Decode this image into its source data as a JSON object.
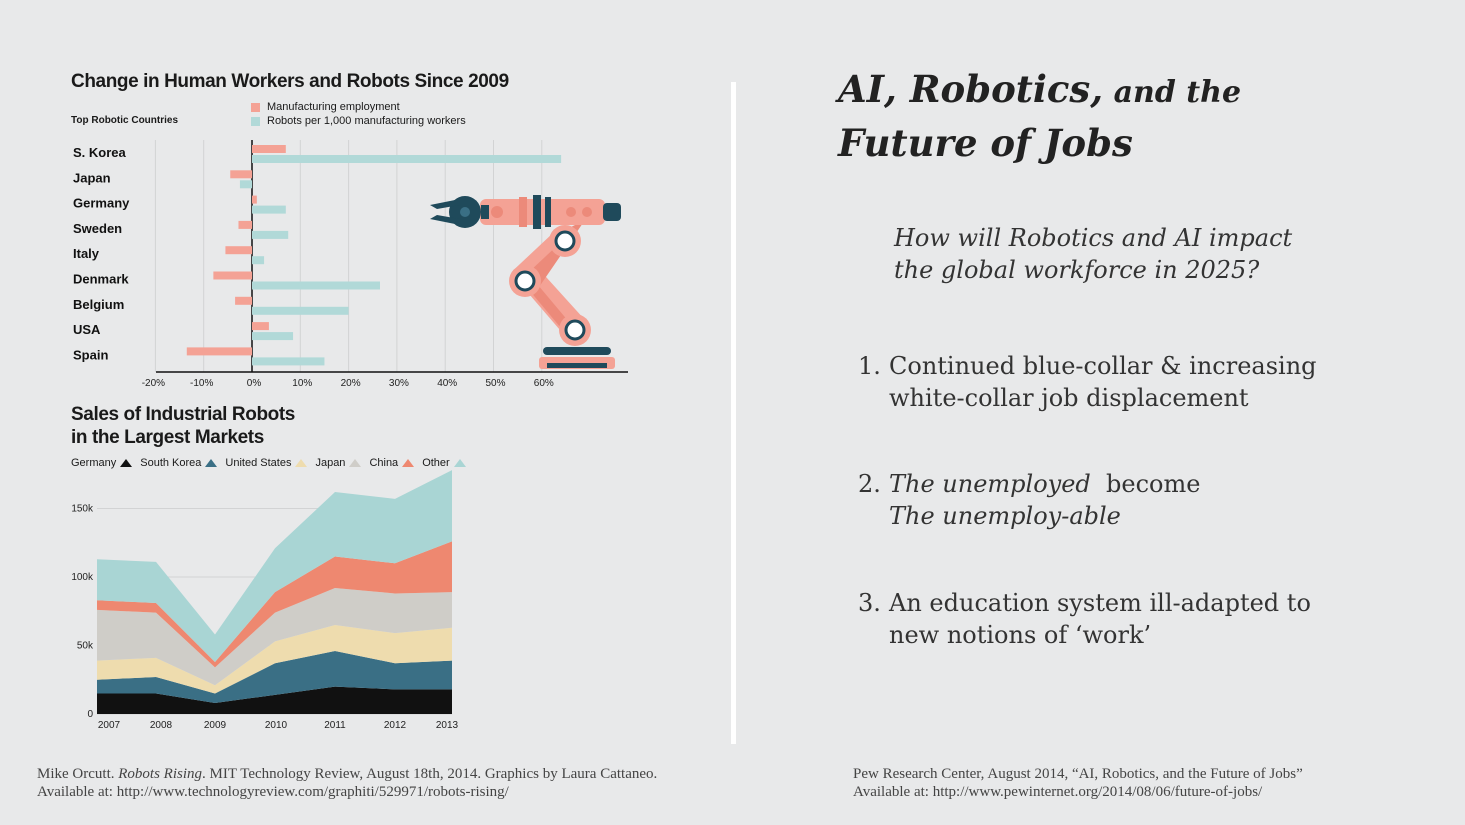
{
  "chart_data": [
    {
      "type": "bar",
      "title": "Change in Human Workers and Robots Since 2009",
      "subtitle": "Top Robotic Countries",
      "categories": [
        "S. Korea",
        "Japan",
        "Germany",
        "Sweden",
        "Italy",
        "Denmark",
        "Belgium",
        "USA",
        "Spain"
      ],
      "series": [
        {
          "name": "Manufacturing employment",
          "color": "#f4a295",
          "values": [
            7,
            -4.5,
            1,
            -2.8,
            -5.5,
            -8,
            -3.5,
            3.5,
            -13.5
          ]
        },
        {
          "name": "Robots per 1,000 manufacturing workers",
          "color": "#b1d9d8",
          "values": [
            64,
            -2.5,
            7,
            7.5,
            2.5,
            26.5,
            20,
            8.5,
            15
          ]
        }
      ],
      "xticks": [
        "-20%",
        "-10%",
        "0%",
        "10%",
        "20%",
        "30%",
        "40%",
        "50%",
        "60%"
      ],
      "xlim": [
        -20,
        78
      ],
      "grid": true,
      "legend_position": "top"
    },
    {
      "type": "area",
      "title": "Sales of Industrial Robots in the Largest Markets",
      "title_lines": [
        "Sales of Industrial Robots",
        "in the Largest Markets"
      ],
      "x": [
        "2007",
        "2008",
        "2009",
        "2010",
        "2011",
        "2012",
        "2013"
      ],
      "yticks": [
        "0",
        "50k",
        "100k",
        "150k"
      ],
      "ylim": [
        0,
        175
      ],
      "stacked": true,
      "series": [
        {
          "name": "Germany",
          "color": "#111111",
          "values": [
            15,
            15,
            8,
            14,
            20,
            18,
            18
          ]
        },
        {
          "name": "South Korea",
          "color": "#3a6f85",
          "values": [
            10,
            12,
            7,
            23,
            26,
            19,
            21
          ]
        },
        {
          "name": "United States",
          "color": "#eedcae",
          "values": [
            14,
            14,
            6,
            16,
            19,
            22,
            24
          ]
        },
        {
          "name": "Japan",
          "color": "#cfcdc8",
          "values": [
            37,
            33,
            13,
            21,
            27,
            29,
            26
          ]
        },
        {
          "name": "China",
          "color": "#ee8870",
          "values": [
            7,
            7,
            4,
            15,
            23,
            22,
            37
          ]
        },
        {
          "name": "Other",
          "color": "#a9d5d4",
          "values": [
            30,
            30,
            20,
            32,
            47,
            47,
            52
          ]
        }
      ],
      "legend_position": "top"
    }
  ],
  "slide": {
    "title_line1_big": "AI, Robotics,",
    "title_line1_small": " and the",
    "title_line2": "Future of Jobs",
    "question_line1": "How will Robotics and AI impact",
    "question_line2": "the global workforce in 2025?",
    "points": [
      {
        "num": "1.",
        "line1": "Continued blue-collar & increasing",
        "line2": "white-collar job displacement"
      },
      {
        "num": "2.",
        "line1_italic": "The unemployed ",
        "line1_rest": " become",
        "line2": "The unemploy-able"
      },
      {
        "num": "3.",
        "line1": "An education system ill-adapted to",
        "line2": "new notions of ‘work’"
      }
    ]
  },
  "citations": {
    "left_author": "Mike Orcutt. ",
    "left_work": "Robots Rising",
    "left_rest": ". MIT Technology Review, August 18th, 2014. Graphics by Laura Cattaneo.",
    "left_line2": "Available at: http://www.technologyreview.com/graphiti/529971/robots-rising/",
    "right_line1": "Pew Research Center, August 2014, “AI, Robotics, and the Future of Jobs”",
    "right_line2": "Available at: http://www.pewinternet.org/2014/08/06/future-of-jobs/"
  },
  "colors": {
    "background": "#e8e9ea",
    "robot_salmon": "#f4a295",
    "robot_dark": "#1f4a5b"
  }
}
